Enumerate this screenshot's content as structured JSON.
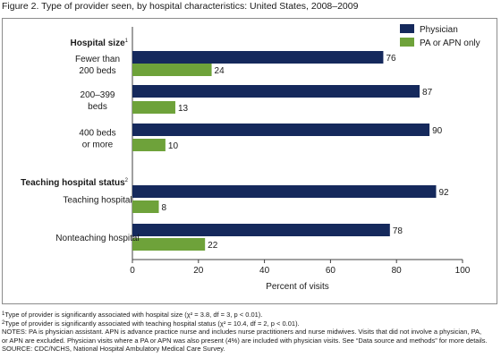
{
  "figure_title": "Figure 2. Type of provider seen, by hospital characteristics: United States, 2008–2009",
  "colors": {
    "physician": "#15295c",
    "pa": "#6ea23a",
    "axis": "#404040"
  },
  "chart_data": {
    "type": "bar",
    "orientation": "horizontal",
    "xlabel": "Percent of visits",
    "xlim": [
      0,
      100
    ],
    "xticks": [
      "0",
      "20",
      "40",
      "60",
      "80",
      "100"
    ],
    "groups": [
      {
        "heading": "Hospital size",
        "heading_sup": "1",
        "categories": [
          {
            "label": [
              "Fewer than",
              "200 beds"
            ],
            "physician": 76,
            "pa": 24
          },
          {
            "label": [
              "200–399",
              "beds"
            ],
            "physician": 87,
            "pa": 13
          },
          {
            "label": [
              "400 beds",
              "or more"
            ],
            "physician": 90,
            "pa": 10
          }
        ]
      },
      {
        "heading": "Teaching hospital status",
        "heading_sup": "2",
        "categories": [
          {
            "label": [
              "Teaching hospital"
            ],
            "physician": 92,
            "pa": 8
          },
          {
            "label": [
              "Nonteaching hospital"
            ],
            "physician": 78,
            "pa": 22
          }
        ]
      }
    ],
    "series": [
      {
        "key": "physician",
        "name": "Physician"
      },
      {
        "key": "pa",
        "name": "PA or APN only"
      }
    ],
    "legend_position": "top-right"
  },
  "notes": {
    "fn1": "Type of provider is significantly associated with hospital size (χ² = 3.8, df = 3, p < 0.01).",
    "fn2": "Type of provider is significantly associated with teaching hospital status (χ² = 10.4, df = 2, p < 0.01).",
    "notes_1": "NOTES: PA is physician assistant. APN is advance practice nurse and includes nurse practitioners and nurse midwives. Visits that did not involve a physician, PA,",
    "notes_2": "or APN are excluded. Physician visits where a PA or APN was also present (4%) are included with physician visits. See “Data source and methods” for more details.",
    "source": "SOURCE: CDC/NCHS, National Hospital Ambulatory Medical Care Survey."
  }
}
